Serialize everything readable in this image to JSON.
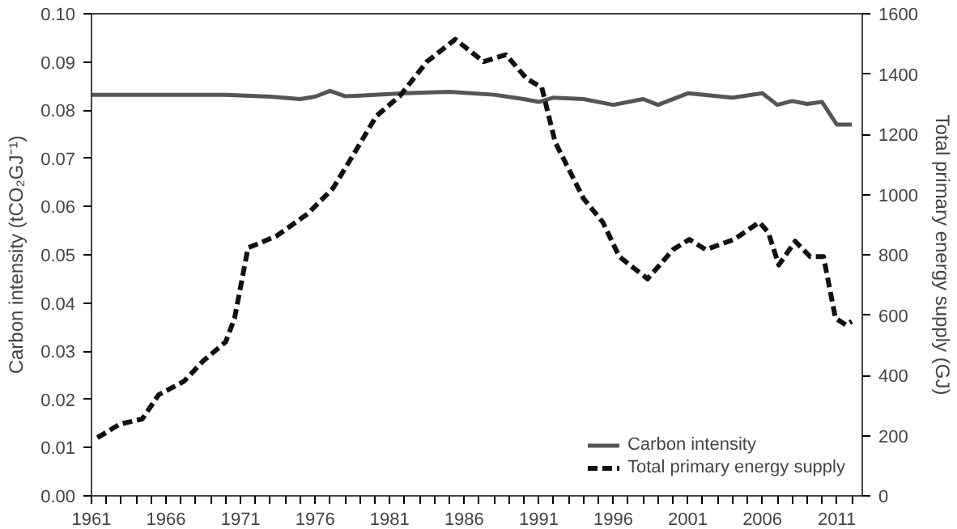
{
  "chart_data": {
    "type": "line",
    "xlabel": null,
    "ylabel": "Carbon intensity (tCO₂GJ⁻¹)",
    "y2label": "Total primary energy supply (GJ)",
    "xlim": [
      1961,
      2012.7
    ],
    "ylim": [
      0,
      0.1
    ],
    "y2lim": [
      0,
      1600
    ],
    "xticks": [
      1961,
      {
        "value": 1962,
        "label": null
      },
      {
        "value": 1963,
        "label": null
      },
      {
        "value": 1964,
        "label": null
      },
      {
        "value": 1965,
        "label": null
      },
      1966,
      {
        "value": 1967,
        "label": null
      },
      {
        "value": 1968,
        "label": null
      },
      {
        "value": 1969,
        "label": null
      },
      {
        "value": 1970,
        "label": null
      },
      1971,
      {
        "value": 1972,
        "label": null
      },
      {
        "value": 1973,
        "label": null
      },
      {
        "value": 1974,
        "label": null
      },
      {
        "value": 1975,
        "label": null
      },
      1976,
      {
        "value": 1977,
        "label": null
      },
      {
        "value": 1978,
        "label": null
      },
      {
        "value": 1979,
        "label": null
      },
      {
        "value": 1980,
        "label": null
      },
      1981,
      {
        "value": 1982,
        "label": null
      },
      {
        "value": 1983,
        "label": null
      },
      {
        "value": 1984,
        "label": null
      },
      {
        "value": 1985,
        "label": null
      },
      1986,
      {
        "value": 1987,
        "label": null
      },
      {
        "value": 1988,
        "label": null
      },
      {
        "value": 1989,
        "label": null
      },
      {
        "value": 1990,
        "label": null
      },
      1991,
      {
        "value": 1992,
        "label": null
      },
      {
        "value": 1993,
        "label": null
      },
      {
        "value": 1994,
        "label": null
      },
      {
        "value": 1995,
        "label": null
      },
      1996,
      {
        "value": 1997,
        "label": null
      },
      {
        "value": 1998,
        "label": null
      },
      {
        "value": 1999,
        "label": null
      },
      {
        "value": 2000,
        "label": null
      },
      2001,
      {
        "value": 2002,
        "label": null
      },
      {
        "value": 2003,
        "label": null
      },
      {
        "value": 2004,
        "label": null
      },
      {
        "value": 2005,
        "label": null
      },
      2006,
      {
        "value": 2007,
        "label": null
      },
      {
        "value": 2008,
        "label": null
      },
      {
        "value": 2009,
        "label": null
      },
      {
        "value": 2010,
        "label": null
      },
      2011,
      {
        "value": 2012,
        "label": null
      }
    ],
    "yticks": [
      {
        "value": 0,
        "label": "0.00"
      },
      {
        "value": 0.01,
        "label": "0.01"
      },
      {
        "value": 0.02,
        "label": "0.02"
      },
      {
        "value": 0.03,
        "label": "0.03"
      },
      {
        "value": 0.04,
        "label": "0.04"
      },
      {
        "value": 0.05,
        "label": "0.05"
      },
      {
        "value": 0.06,
        "label": "0.06"
      },
      {
        "value": 0.07,
        "label": "0.07"
      },
      {
        "value": 0.08,
        "label": "0.08"
      },
      {
        "value": 0.09,
        "label": "0.09"
      },
      {
        "value": 0.1,
        "label": "0.10"
      }
    ],
    "y2ticks": [
      0,
      200,
      400,
      600,
      800,
      1000,
      1200,
      1400,
      1600
    ],
    "grid": false,
    "legend": "bottom right",
    "series": [
      {
        "name": "Carbon intensity",
        "color": "#555555",
        "line_style": "solid",
        "x": [
          1961,
          1965,
          1970,
          1973,
          1975,
          1976,
          1977,
          1978,
          1979,
          1982,
          1985,
          1988,
          1990,
          1991,
          1992,
          1994,
          1996,
          1998,
          1999,
          2001,
          2004,
          2006,
          2007,
          2008,
          2009,
          2010,
          2011,
          2012
        ],
        "values": [
          0.0832,
          0.0832,
          0.0832,
          0.0828,
          0.0823,
          0.0828,
          0.084,
          0.0829,
          0.083,
          0.0835,
          0.0838,
          0.0832,
          0.0823,
          0.0817,
          0.0826,
          0.0823,
          0.0811,
          0.0823,
          0.0811,
          0.0835,
          0.0826,
          0.0835,
          0.0811,
          0.0819,
          0.0813,
          0.0817,
          0.077,
          0.077
        ]
      },
      {
        "name": "Total primary energy supply",
        "color": "#111111",
        "line_style": "dashed",
        "axis": "y2",
        "x": [
          1961.4,
          1962.9,
          1964.4,
          1965.5,
          1967.2,
          1968.5,
          1970,
          1970.6,
          1971.5,
          1973.4,
          1975.5,
          1977.2,
          1978.6,
          1980.1,
          1981.7,
          1983.5,
          1985.4,
          1987.3,
          1988.8,
          1990.2,
          1991.2,
          1992.1,
          1994,
          1995.3,
          1996.4,
          1998.3,
          2000,
          2001.1,
          2002.2,
          2004.1,
          2005.8,
          2006.4,
          2007.1,
          2008.2,
          2009.2,
          2010.1,
          2010.9,
          2011.6,
          2012
        ],
        "values": [
          193,
          238,
          255,
          335,
          380,
          448,
          511,
          590,
          823,
          862,
          936,
          1021,
          1135,
          1260,
          1328,
          1441,
          1515,
          1441,
          1464,
          1384,
          1356,
          1174,
          987,
          908,
          794,
          720,
          817,
          851,
          817,
          851,
          908,
          874,
          766,
          845,
          794,
          794,
          590,
          567,
          579
        ]
      }
    ]
  }
}
